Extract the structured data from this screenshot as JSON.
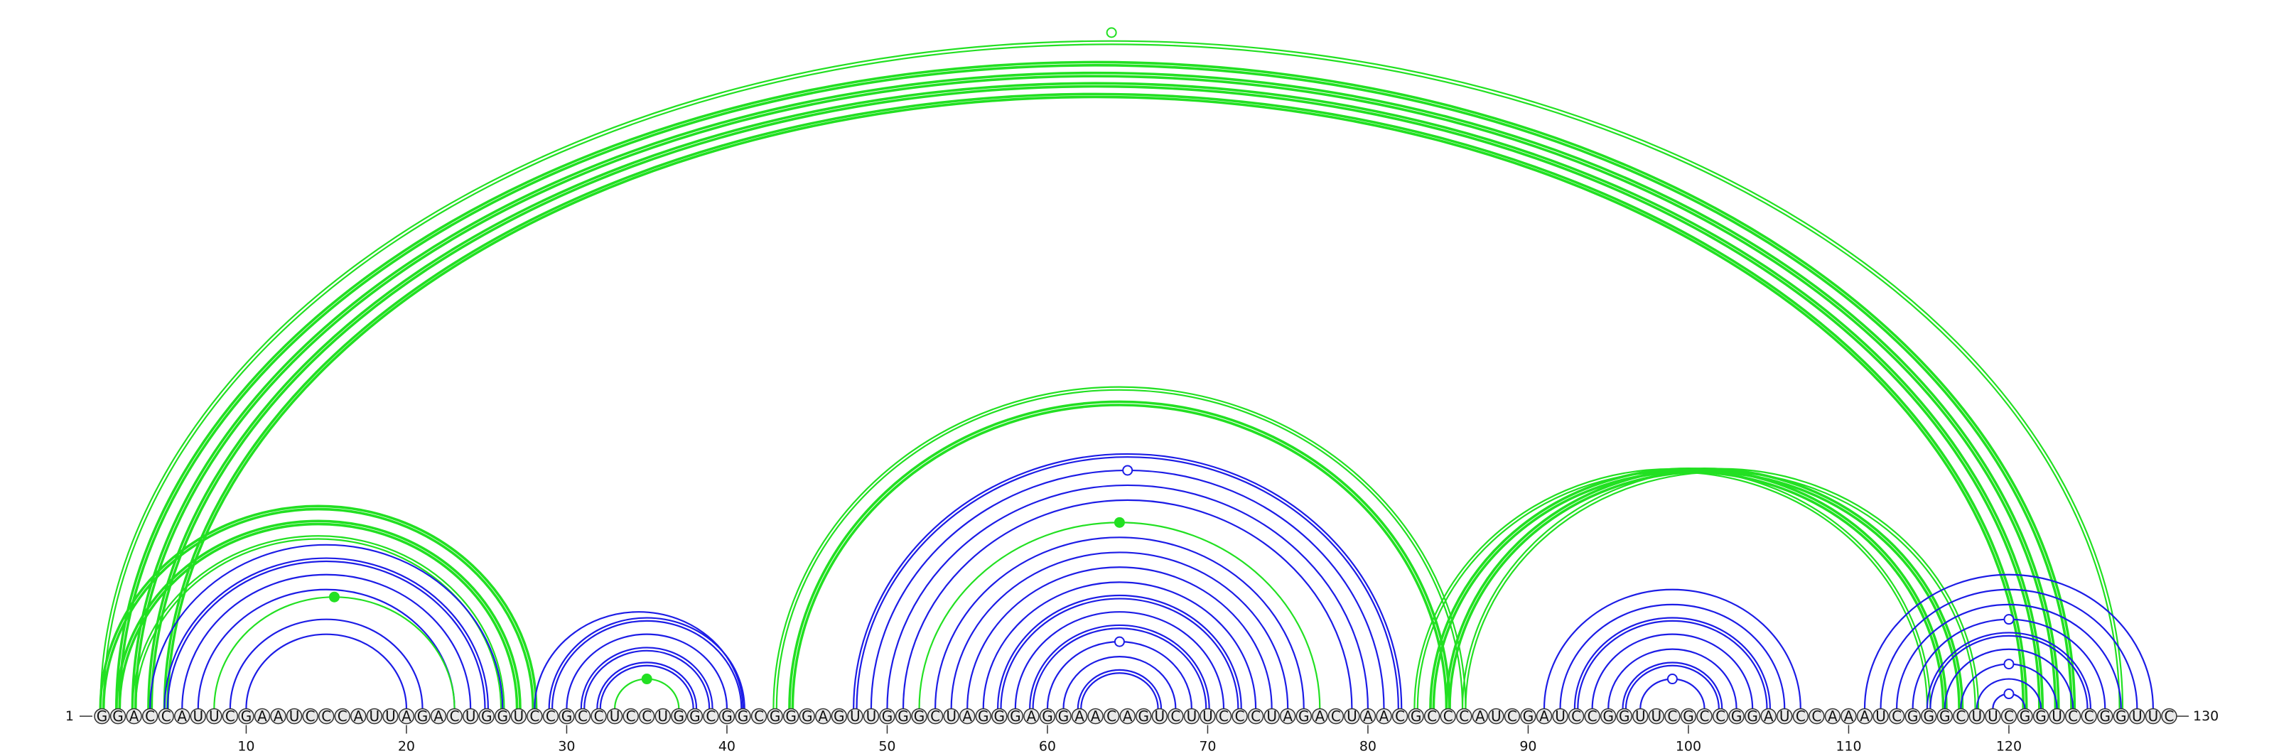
{
  "sequence": "GGACCAUUCGAAUCCCAUUAGACUGGUCCGCCUCCUGGCGGCGGGAGUUGGGCUAGGGAGGAACAGUCUUCCCUAGACUAACGCCCAUCGAUCCGGUUCGCCGGAUCCAAAUCGGGCUUCGGUCCGGUUC",
  "start_label": "1",
  "end_label": "130",
  "tick_labels": [
    "10",
    "20",
    "30",
    "40",
    "50",
    "60",
    "70",
    "80",
    "90",
    "100",
    "110",
    "120"
  ],
  "colors": {
    "canonical": "#1c1ce6",
    "noncanonical": "#22e022",
    "nucleotide_fill": "#e9e9e9"
  },
  "base_pairs": [
    {
      "i": 1,
      "j": 127,
      "kind": "noncanonical",
      "style": "double"
    },
    {
      "i": 2,
      "j": 124,
      "kind": "noncanonical",
      "style": "double-bold"
    },
    {
      "i": 3,
      "j": 123,
      "kind": "noncanonical",
      "style": "double-bold"
    },
    {
      "i": 4,
      "j": 122,
      "kind": "noncanonical",
      "style": "double-bold"
    },
    {
      "i": 5,
      "j": 121,
      "kind": "noncanonical",
      "style": "double-bold"
    },
    {
      "i": 1,
      "j": 28,
      "kind": "noncanonical",
      "style": "double-bold"
    },
    {
      "i": 2,
      "j": 27,
      "kind": "noncanonical",
      "style": "double-bold"
    },
    {
      "i": 3,
      "j": 26,
      "kind": "noncanonical",
      "style": "double"
    },
    {
      "i": 4,
      "j": 26,
      "kind": "canonical",
      "style": "single"
    },
    {
      "i": 5,
      "j": 25,
      "kind": "canonical",
      "style": "double"
    },
    {
      "i": 6,
      "j": 24,
      "kind": "canonical",
      "style": "single"
    },
    {
      "i": 7,
      "j": 23,
      "kind": "canonical",
      "style": "single"
    },
    {
      "i": 8,
      "j": 23,
      "kind": "noncanonical",
      "style": "single",
      "marker": "dot"
    },
    {
      "i": 9,
      "j": 21,
      "kind": "canonical",
      "style": "single"
    },
    {
      "i": 10,
      "j": 20,
      "kind": "canonical",
      "style": "single"
    },
    {
      "i": 28,
      "j": 41,
      "kind": "canonical",
      "style": "single"
    },
    {
      "i": 29,
      "j": 41,
      "kind": "canonical",
      "style": "double"
    },
    {
      "i": 30,
      "j": 40,
      "kind": "canonical",
      "style": "single"
    },
    {
      "i": 31,
      "j": 39,
      "kind": "canonical",
      "style": "double"
    },
    {
      "i": 32,
      "j": 38,
      "kind": "canonical",
      "style": "double"
    },
    {
      "i": 33,
      "j": 37,
      "kind": "noncanonical",
      "style": "single",
      "marker": "dot"
    },
    {
      "i": 43,
      "j": 86,
      "kind": "noncanonical",
      "style": "double"
    },
    {
      "i": 44,
      "j": 85,
      "kind": "noncanonical",
      "style": "double-bold"
    },
    {
      "i": 48,
      "j": 82,
      "kind": "canonical",
      "style": "double"
    },
    {
      "i": 49,
      "j": 81,
      "kind": "canonical",
      "style": "single",
      "marker": "ring"
    },
    {
      "i": 50,
      "j": 80,
      "kind": "canonical",
      "style": "single"
    },
    {
      "i": 51,
      "j": 79,
      "kind": "canonical",
      "style": "single"
    },
    {
      "i": 52,
      "j": 77,
      "kind": "noncanonical",
      "style": "single",
      "marker": "dot"
    },
    {
      "i": 53,
      "j": 76,
      "kind": "canonical",
      "style": "single"
    },
    {
      "i": 54,
      "j": 75,
      "kind": "canonical",
      "style": "single"
    },
    {
      "i": 55,
      "j": 74,
      "kind": "canonical",
      "style": "single"
    },
    {
      "i": 56,
      "j": 73,
      "kind": "canonical",
      "style": "single"
    },
    {
      "i": 57,
      "j": 72,
      "kind": "canonical",
      "style": "double"
    },
    {
      "i": 58,
      "j": 71,
      "kind": "canonical",
      "style": "single"
    },
    {
      "i": 59,
      "j": 70,
      "kind": "canonical",
      "style": "double"
    },
    {
      "i": 60,
      "j": 69,
      "kind": "canonical",
      "style": "single",
      "marker": "ring"
    },
    {
      "i": 61,
      "j": 68,
      "kind": "canonical",
      "style": "single"
    },
    {
      "i": 62,
      "j": 67,
      "kind": "canonical",
      "style": "double"
    },
    {
      "i": 83,
      "j": 115,
      "kind": "noncanonical",
      "style": "double"
    },
    {
      "i": 84,
      "j": 116,
      "kind": "noncanonical",
      "style": "double-bold"
    },
    {
      "i": 85,
      "j": 117,
      "kind": "noncanonical",
      "style": "double-bold"
    },
    {
      "i": 86,
      "j": 118,
      "kind": "noncanonical",
      "style": "double"
    },
    {
      "i": 91,
      "j": 107,
      "kind": "canonical",
      "style": "single"
    },
    {
      "i": 92,
      "j": 106,
      "kind": "canonical",
      "style": "single"
    },
    {
      "i": 93,
      "j": 105,
      "kind": "canonical",
      "style": "double"
    },
    {
      "i": 94,
      "j": 104,
      "kind": "canonical",
      "style": "single"
    },
    {
      "i": 95,
      "j": 103,
      "kind": "canonical",
      "style": "single"
    },
    {
      "i": 96,
      "j": 102,
      "kind": "canonical",
      "style": "double"
    },
    {
      "i": 97,
      "j": 101,
      "kind": "canonical",
      "style": "single",
      "marker": "ring"
    },
    {
      "i": 111,
      "j": 129,
      "kind": "canonical",
      "style": "single"
    },
    {
      "i": 112,
      "j": 128,
      "kind": "canonical",
      "style": "single"
    },
    {
      "i": 113,
      "j": 127,
      "kind": "canonical",
      "style": "single"
    },
    {
      "i": 114,
      "j": 126,
      "kind": "canonical",
      "style": "single",
      "marker": "ring"
    },
    {
      "i": 115,
      "j": 125,
      "kind": "canonical",
      "style": "double"
    },
    {
      "i": 116,
      "j": 124,
      "kind": "canonical",
      "style": "single"
    },
    {
      "i": 117,
      "j": 123,
      "kind": "canonical",
      "style": "single",
      "marker": "ring"
    },
    {
      "i": 118,
      "j": 122,
      "kind": "canonical",
      "style": "single"
    },
    {
      "i": 119,
      "j": 121,
      "kind": "canonical",
      "style": "single",
      "marker": "ring"
    }
  ]
}
